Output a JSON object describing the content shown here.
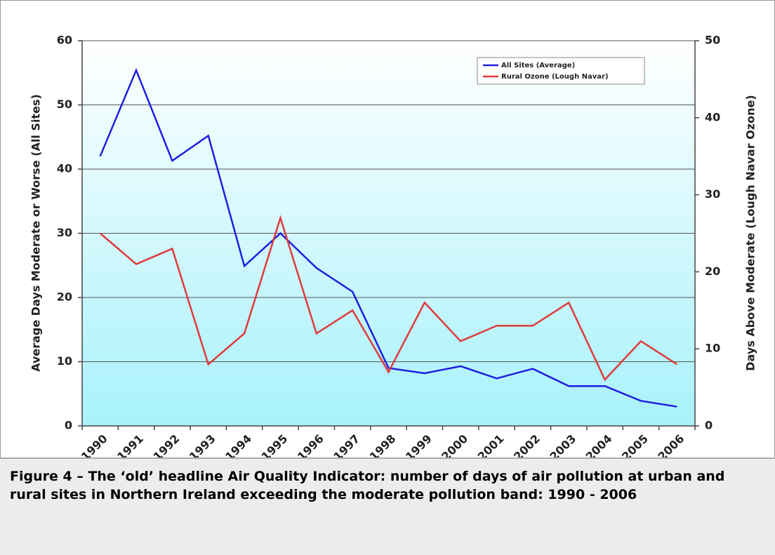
{
  "chart_data": {
    "type": "line",
    "categories": [
      "1990",
      "1991",
      "1992",
      "1993",
      "1994",
      "1995",
      "1996",
      "1997",
      "1998",
      "1999",
      "2000",
      "2001",
      "2002",
      "2003",
      "2004",
      "2005",
      "2006"
    ],
    "ylabel": "Average Days Moderate or Worse (All Sites)",
    "y2label": "Days Above Moderate (Lough Navar Ozone)",
    "ylim": [
      0,
      60
    ],
    "yticks": [
      0,
      10,
      20,
      30,
      40,
      50,
      60
    ],
    "y2lim": [
      0,
      50
    ],
    "y2ticks": [
      0,
      10,
      20,
      30,
      40,
      50
    ],
    "grid": true,
    "legend": "upper right",
    "series": [
      {
        "name": "All Sites (Average)",
        "color": "#1f1fe0",
        "values": [
          42,
          55.4,
          41.3,
          45.2,
          24.9,
          30,
          24.6,
          20.9,
          9,
          8.2,
          9.3,
          7.4,
          8.9,
          6.2,
          6.2,
          3.9,
          3.0
        ]
      },
      {
        "name": "Rural Ozone (Lough Navar)",
        "color": "#e03a3a",
        "axis": "y2",
        "values": [
          25,
          21,
          23,
          8,
          12,
          27,
          12,
          15,
          7,
          16,
          11,
          13,
          13,
          16,
          6,
          11,
          8
        ]
      }
    ]
  },
  "caption": "Figure 4 – The ‘old’ headline Air Quality Indicator: number of days of air pollution at urban and rural sites in Northern Ireland exceeding the moderate pollution band: 1990 - 2006"
}
